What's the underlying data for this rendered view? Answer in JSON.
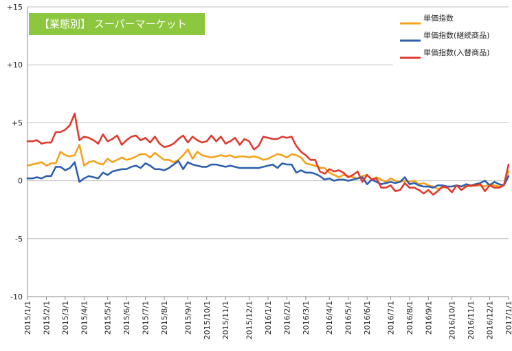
{
  "chart_data": {
    "type": "line",
    "title": "【業態別】 スーパーマーケット",
    "title_box_color": "#8dc73f",
    "xlabel": "",
    "ylabel": "",
    "ylim": [
      -10,
      15
    ],
    "y_ticks": [
      {
        "value": 15,
        "label": "+15"
      },
      {
        "value": 10,
        "label": "+10"
      },
      {
        "value": 5,
        "label": "+5"
      },
      {
        "value": 0,
        "label": "0"
      },
      {
        "value": -5,
        "label": "-5"
      },
      {
        "value": -10,
        "label": "-10"
      }
    ],
    "grid": "horizontal",
    "legend_position": "top-right",
    "x_ticks": [
      "2015/1/1",
      "2015/2/1",
      "2015/3/1",
      "2015/4/1",
      "2015/5/1",
      "2015/6/1",
      "2015/7/1",
      "2015/8/1",
      "2015/9/1",
      "2015/10/1",
      "2015/11/1",
      "2015/12/1",
      "2016/1/1",
      "2016/2/1",
      "2016/3/1",
      "2016/4/1",
      "2016/5/1",
      "2016/6/1",
      "2016/7/1",
      "2016/8/1",
      "2016/9/1",
      "2016/10/1",
      "2016/11/1",
      "2016/12/1",
      "2017/1/1"
    ],
    "x_tick_positions": [
      0,
      4,
      8,
      12,
      17,
      21,
      25,
      29,
      34,
      38,
      42,
      47,
      51,
      55,
      59,
      64,
      68,
      72,
      77,
      81,
      85,
      90,
      94,
      98,
      102
    ],
    "points_count": 103,
    "series": [
      {
        "name": "単価指数",
        "color": "#f5a11a",
        "values": [
          1.3,
          1.4,
          1.5,
          1.6,
          1.3,
          1.5,
          1.5,
          2.5,
          2.2,
          2.1,
          2.2,
          3.1,
          1.3,
          1.6,
          1.7,
          1.5,
          1.4,
          1.9,
          1.6,
          1.8,
          2.0,
          1.8,
          1.9,
          2.1,
          2.3,
          2.3,
          2.0,
          2.4,
          2.1,
          1.8,
          1.8,
          1.6,
          1.8,
          2.2,
          2.7,
          1.9,
          2.5,
          2.2,
          2.1,
          2.0,
          2.1,
          2.2,
          2.1,
          2.2,
          2.0,
          2.1,
          2.1,
          2.0,
          2.1,
          2.0,
          1.8,
          1.9,
          2.1,
          2.3,
          2.2,
          2.0,
          2.3,
          2.2,
          2.0,
          1.5,
          1.4,
          1.3,
          1.1,
          1.1,
          0.7,
          0.5,
          0.3,
          0.5,
          0.4,
          0.3,
          0.2,
          0.4,
          0.5,
          0.1,
          0.3,
          0.1,
          -0.1,
          0.2,
          0.0,
          -0.1,
          0.0,
          -0.1,
          0.0,
          -0.3,
          -0.2,
          -0.4,
          -0.5,
          -0.7,
          -0.6,
          -0.5,
          -0.5,
          -0.4,
          -0.5,
          -0.4,
          -0.5,
          -0.4,
          -0.4,
          -0.5,
          -0.3,
          -0.4,
          -0.5,
          -0.4,
          0.8
        ]
      },
      {
        "name": "単価指数(継続商品)",
        "color": "#2e5fad",
        "values": [
          0.2,
          0.2,
          0.3,
          0.2,
          0.4,
          0.4,
          1.2,
          1.2,
          0.9,
          1.1,
          1.6,
          -0.1,
          0.2,
          0.4,
          0.3,
          0.2,
          0.7,
          0.5,
          0.8,
          0.9,
          1.0,
          1.0,
          1.2,
          1.3,
          1.1,
          1.5,
          1.3,
          1.0,
          1.0,
          0.9,
          1.1,
          1.4,
          1.7,
          1.0,
          1.6,
          1.4,
          1.3,
          1.2,
          1.2,
          1.4,
          1.4,
          1.3,
          1.2,
          1.3,
          1.2,
          1.1,
          1.1,
          1.1,
          1.1,
          1.1,
          1.2,
          1.3,
          1.4,
          1.1,
          1.5,
          1.4,
          1.4,
          0.7,
          0.9,
          0.7,
          0.7,
          0.6,
          0.4,
          0.1,
          0.2,
          0.0,
          0.1,
          0.1,
          0.0,
          0.1,
          0.2,
          0.3,
          -0.3,
          0.1,
          -0.1,
          -0.3,
          -0.2,
          -0.1,
          -0.2,
          -0.1,
          0.3,
          -0.3,
          -0.2,
          -0.4,
          -0.5,
          -0.5,
          -0.6,
          -0.4,
          -0.4,
          -0.5,
          -0.5,
          -0.4,
          -0.5,
          -0.3,
          -0.4,
          -0.3,
          -0.2,
          0.0,
          -0.4,
          -0.1,
          -0.3,
          -0.4,
          0.4
        ]
      },
      {
        "name": "単価指数(入替商品)",
        "color": "#e03a2e",
        "values": [
          3.4,
          3.4,
          3.5,
          3.2,
          3.3,
          3.3,
          4.2,
          4.2,
          4.4,
          4.8,
          5.8,
          3.5,
          3.8,
          3.7,
          3.5,
          3.2,
          4.0,
          3.4,
          3.6,
          3.9,
          3.1,
          3.5,
          3.8,
          3.9,
          3.5,
          3.7,
          3.3,
          3.8,
          3.2,
          2.9,
          3.0,
          3.2,
          3.6,
          3.9,
          3.3,
          3.8,
          3.5,
          3.3,
          3.4,
          3.9,
          3.4,
          3.8,
          3.2,
          3.4,
          3.7,
          3.1,
          3.6,
          3.4,
          2.7,
          3.0,
          3.8,
          3.7,
          3.6,
          3.6,
          3.8,
          3.7,
          3.8,
          3.0,
          2.5,
          2.2,
          1.8,
          1.8,
          0.8,
          0.6,
          1.0,
          0.8,
          0.9,
          0.7,
          0.3,
          0.5,
          0.8,
          -0.1,
          0.5,
          0.1,
          0.2,
          -0.6,
          -0.6,
          -0.4,
          -0.9,
          -0.8,
          -0.2,
          -0.6,
          -0.6,
          -0.8,
          -1.1,
          -0.8,
          -1.2,
          -0.9,
          -0.5,
          -0.6,
          -1.0,
          -0.4,
          -0.8,
          -0.5,
          -0.4,
          -0.4,
          -0.3,
          -0.9,
          -0.4,
          -0.6,
          -0.6,
          -0.4,
          1.4
        ]
      }
    ]
  }
}
